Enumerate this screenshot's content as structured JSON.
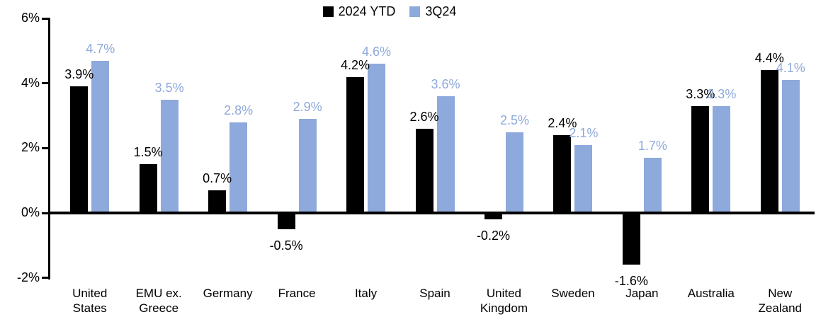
{
  "chart_data": {
    "type": "bar",
    "title": "",
    "categories": [
      "United States",
      "EMU ex. Greece",
      "Germany",
      "France",
      "Italy",
      "Spain",
      "United Kingdom",
      "Sweden",
      "Japan",
      "Australia",
      "New Zealand"
    ],
    "series": [
      {
        "name": "2024 YTD",
        "color": "#000000",
        "label_color": "#000000",
        "values": [
          3.9,
          1.5,
          0.7,
          -0.5,
          4.2,
          2.6,
          -0.2,
          2.4,
          -1.6,
          3.3,
          4.4
        ],
        "labels": [
          "3.9%",
          "1.5%",
          "0.7%",
          "-0.5%",
          "4.2%",
          "2.6%",
          "-0.2%",
          "2.4%",
          "-1.6%",
          "3.3%",
          "4.4%"
        ]
      },
      {
        "name": "3Q24",
        "color": "#8EA9DB",
        "label_color": "#8EA9DB",
        "values": [
          4.7,
          3.5,
          2.8,
          2.9,
          4.6,
          3.6,
          2.5,
          2.1,
          1.7,
          3.3,
          4.1
        ],
        "labels": [
          "4.7%",
          "3.5%",
          "2.8%",
          "2.9%",
          "4.6%",
          "3.6%",
          "2.5%",
          "2.1%",
          "1.7%",
          "3.3%",
          "4.1%"
        ]
      }
    ],
    "y_axis": {
      "min": -2,
      "max": 6,
      "ticks": [
        {
          "value": 6,
          "label": "6%"
        },
        {
          "value": 4,
          "label": "4%"
        },
        {
          "value": 2,
          "label": "2%"
        },
        {
          "value": 0,
          "label": "0%"
        },
        {
          "value": -2,
          "label": "-2%"
        }
      ]
    },
    "grid": false,
    "legend_position": "top-center",
    "xlabel": "",
    "ylabel": ""
  }
}
